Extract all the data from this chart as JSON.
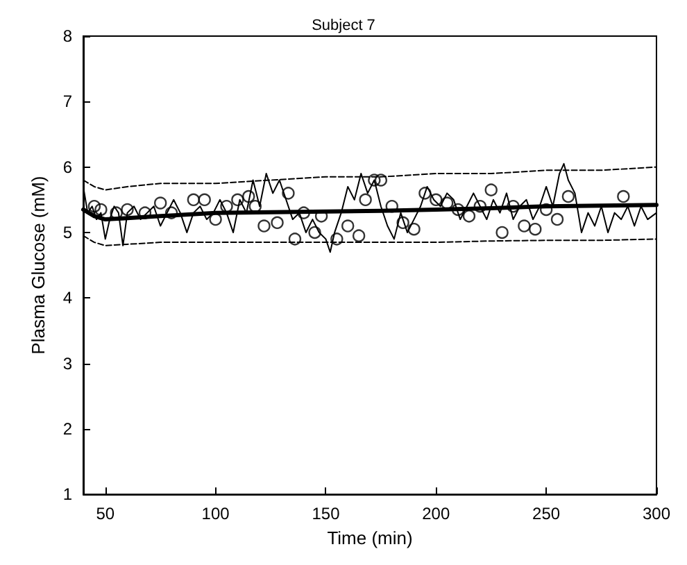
{
  "chart_data": {
    "type": "line",
    "title": "Subject 7",
    "xlabel": "Time (min)",
    "ylabel": "Plasma Glucose (mM)",
    "xlim": [
      40,
      300
    ],
    "ylim": [
      1,
      8
    ],
    "xticks": [
      50,
      100,
      150,
      200,
      250,
      300
    ],
    "yticks": [
      1,
      2,
      3,
      4,
      5,
      6,
      7,
      8
    ],
    "grid": false,
    "series": [
      {
        "color": "#000000",
        "marker": "none",
        "line_style": "solid",
        "x": [
          40,
          42,
          44,
          46,
          48,
          50,
          52,
          54,
          56,
          58,
          60,
          63,
          66,
          69,
          72,
          75,
          78,
          81,
          84,
          87,
          90,
          93,
          96,
          99,
          102,
          105,
          108,
          111,
          114,
          117,
          120,
          123,
          126,
          129,
          132,
          135,
          138,
          141,
          144,
          147,
          150,
          152,
          154,
          157,
          160,
          163,
          166,
          169,
          172,
          175,
          178,
          181,
          184,
          187,
          190,
          193,
          196,
          199,
          202,
          205,
          208,
          211,
          214,
          217,
          220,
          223,
          226,
          229,
          232,
          235,
          238,
          241,
          244,
          247,
          250,
          253,
          256,
          258,
          260,
          263,
          266,
          269,
          272,
          275,
          278,
          281,
          284,
          287,
          290,
          293,
          296,
          300
        ],
        "values": [
          5.7,
          5.3,
          5.4,
          5.2,
          5.3,
          4.9,
          5.2,
          5.4,
          5.3,
          4.8,
          5.3,
          5.4,
          5.2,
          5.3,
          5.4,
          5.1,
          5.3,
          5.5,
          5.3,
          5.0,
          5.3,
          5.4,
          5.2,
          5.3,
          5.5,
          5.3,
          5.0,
          5.5,
          5.3,
          5.8,
          5.4,
          5.9,
          5.6,
          5.8,
          5.5,
          5.2,
          5.3,
          5.0,
          5.2,
          5.0,
          4.9,
          4.7,
          5.0,
          5.3,
          5.7,
          5.5,
          5.9,
          5.6,
          5.8,
          5.4,
          5.1,
          4.9,
          5.3,
          5.0,
          5.2,
          5.4,
          5.7,
          5.5,
          5.4,
          5.6,
          5.5,
          5.2,
          5.4,
          5.6,
          5.4,
          5.2,
          5.5,
          5.3,
          5.6,
          5.2,
          5.4,
          5.5,
          5.2,
          5.4,
          5.7,
          5.4,
          5.9,
          6.05,
          5.8,
          5.6,
          5.0,
          5.3,
          5.1,
          5.4,
          5.0,
          5.3,
          5.2,
          5.4,
          5.1,
          5.4,
          5.2,
          5.3
        ]
      },
      {
        "type": "scatter",
        "color": "#000000",
        "marker": "circle",
        "x": [
          45,
          48,
          55,
          60,
          68,
          75,
          80,
          90,
          95,
          100,
          105,
          110,
          115,
          118,
          122,
          128,
          133,
          136,
          140,
          145,
          148,
          155,
          160,
          165,
          168,
          172,
          175,
          180,
          185,
          190,
          195,
          200,
          205,
          210,
          215,
          220,
          225,
          230,
          235,
          240,
          245,
          250,
          255,
          260,
          285
        ],
        "values": [
          5.4,
          5.35,
          5.3,
          5.35,
          5.3,
          5.45,
          5.3,
          5.5,
          5.5,
          5.2,
          5.4,
          5.5,
          5.55,
          5.4,
          5.1,
          5.15,
          5.6,
          4.9,
          5.3,
          5.0,
          5.25,
          4.9,
          5.1,
          4.95,
          5.5,
          5.8,
          5.8,
          5.4,
          5.15,
          5.05,
          5.6,
          5.5,
          5.45,
          5.35,
          5.25,
          5.4,
          5.65,
          5.0,
          5.4,
          5.1,
          5.05,
          5.35,
          5.2,
          5.55,
          5.55
        ]
      },
      {
        "color": "#000000",
        "marker": "none",
        "line_style": "solid",
        "x": [
          40,
          45,
          50,
          60,
          75,
          100,
          125,
          150,
          175,
          200,
          225,
          250,
          275,
          300
        ],
        "values": [
          5.35,
          5.25,
          5.2,
          5.22,
          5.25,
          5.3,
          5.31,
          5.32,
          5.33,
          5.35,
          5.37,
          5.4,
          5.41,
          5.42
        ]
      },
      {
        "color": "#000000",
        "marker": "none",
        "line_style": "dashed",
        "x": [
          40,
          45,
          50,
          60,
          75,
          100,
          125,
          150,
          175,
          200,
          225,
          250,
          275,
          300
        ],
        "values": [
          4.95,
          4.85,
          4.8,
          4.82,
          4.85,
          4.85,
          4.85,
          4.85,
          4.85,
          4.85,
          4.87,
          4.88,
          4.88,
          4.9
        ]
      },
      {
        "color": "#000000",
        "marker": "none",
        "line_style": "dashed",
        "x": [
          40,
          45,
          50,
          60,
          75,
          100,
          125,
          150,
          175,
          200,
          225,
          250,
          275,
          300
        ],
        "values": [
          5.8,
          5.7,
          5.65,
          5.7,
          5.75,
          5.75,
          5.8,
          5.85,
          5.85,
          5.9,
          5.9,
          5.95,
          5.95,
          6.0
        ]
      }
    ]
  }
}
